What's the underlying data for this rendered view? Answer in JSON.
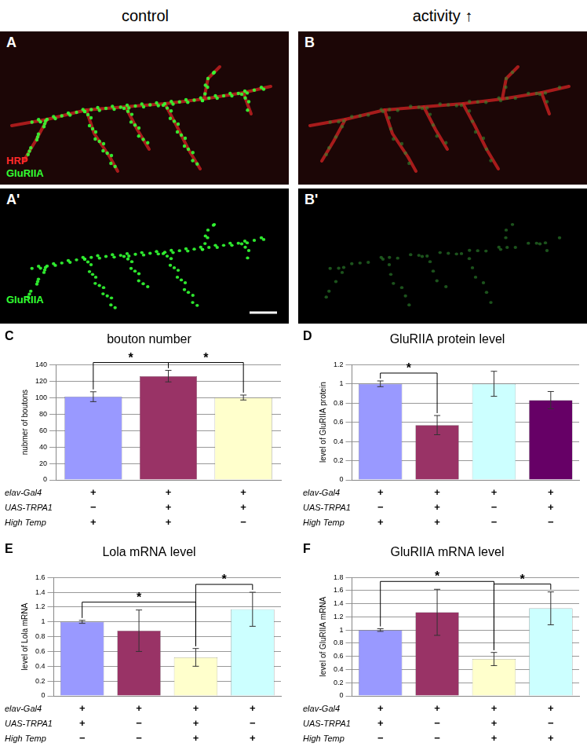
{
  "header": {
    "left": "control",
    "right": "activity ↑"
  },
  "panels": [
    {
      "letter": "A",
      "labels": [
        {
          "text": "HRP",
          "color": "#ff2a2a"
        },
        {
          "text": "GluRIIA",
          "color": "#33ff33"
        }
      ]
    },
    {
      "letter": "B",
      "labels": []
    },
    {
      "letter": "A'",
      "labels": [
        {
          "text": "GluRIIA",
          "color": "#33ff33"
        }
      ]
    },
    {
      "letter": "B'",
      "labels": []
    }
  ],
  "chart_data": [
    {
      "panel": "C",
      "type": "bar",
      "title": "bouton number",
      "y_label": "nubmer of boutons",
      "categories": [
        null,
        null,
        null
      ],
      "values": [
        101,
        126,
        100
      ],
      "errors": [
        6,
        7,
        3
      ],
      "colors": [
        "#9999ff",
        "#993366",
        "#ffffcc"
      ],
      "ylim": [
        0,
        140
      ],
      "yticks": [
        0,
        20,
        40,
        60,
        80,
        100,
        120,
        140
      ],
      "grid": true,
      "tick_labels": "y",
      "significance": [
        {
          "from": 0,
          "to": 1,
          "label": "*"
        },
        {
          "from": 1,
          "to": 2,
          "label": "*"
        }
      ],
      "genotype": [
        {
          "name": "elav-Gal4",
          "values": [
            "+",
            "+",
            "+"
          ]
        },
        {
          "name": "UAS-TRPA1",
          "values": [
            "−",
            "+",
            "+"
          ]
        },
        {
          "name": "High Temp",
          "values": [
            "+",
            "+",
            "−"
          ]
        }
      ]
    },
    {
      "panel": "D",
      "type": "bar",
      "title": "GluRIIA protein level",
      "y_label": "level of GluRIIA protein",
      "categories": [
        null,
        null,
        null,
        null
      ],
      "values": [
        1.0,
        0.57,
        1.0,
        0.83
      ],
      "errors": [
        0.03,
        0.1,
        0.13,
        0.09
      ],
      "colors": [
        "#9999ff",
        "#993366",
        "#ccffff",
        "#660066"
      ],
      "ylim": [
        0,
        1.2
      ],
      "yticks": [
        0,
        0.2,
        0.4,
        0.6,
        0.8,
        1,
        1.2
      ],
      "grid": true,
      "tick_labels": "y",
      "significance": [
        {
          "from": 0,
          "to": 1,
          "label": "*"
        }
      ],
      "genotype": [
        {
          "name": "elav-Gal4",
          "values": [
            "+",
            "+",
            "+",
            "+"
          ]
        },
        {
          "name": "UAS-TRPA1",
          "values": [
            "−",
            "+",
            "−",
            "+"
          ]
        },
        {
          "name": "High Temp",
          "values": [
            "+",
            "+",
            "−",
            "−"
          ]
        }
      ]
    },
    {
      "panel": "E",
      "type": "bar",
      "title": "Lola mRNA level",
      "y_label": "level of Lola mRNA",
      "categories": [
        null,
        null,
        null,
        null
      ],
      "values": [
        1.0,
        0.88,
        0.52,
        1.17
      ],
      "errors": [
        0.02,
        0.28,
        0.12,
        0.23
      ],
      "colors": [
        "#9999ff",
        "#993366",
        "#ffffcc",
        "#ccffff"
      ],
      "ylim": [
        0,
        1.6
      ],
      "yticks": [
        0,
        0.2,
        0.4,
        0.6,
        0.8,
        1,
        1.2,
        1.4,
        1.6
      ],
      "grid": true,
      "tick_labels": "y",
      "significance": [
        {
          "from": 0,
          "to": 2,
          "label": "*"
        },
        {
          "from": 2,
          "to": 3,
          "label": "*"
        }
      ],
      "genotype": [
        {
          "name": "elav-Gal4",
          "values": [
            "+",
            "+",
            "+",
            "+"
          ]
        },
        {
          "name": "UAS-TRPA1",
          "values": [
            "+",
            "−",
            "+",
            "−"
          ]
        },
        {
          "name": "High Temp",
          "values": [
            "−",
            "−",
            "+",
            "+"
          ]
        }
      ]
    },
    {
      "panel": "F",
      "type": "bar",
      "title": "GluRIIA mRNA level",
      "y_label": "level of GluRIIA mRNA",
      "categories": [
        null,
        null,
        null,
        null
      ],
      "values": [
        1.0,
        1.27,
        0.56,
        1.33
      ],
      "errors": [
        0.02,
        0.35,
        0.1,
        0.25
      ],
      "colors": [
        "#9999ff",
        "#993366",
        "#ffffcc",
        "#ccffff"
      ],
      "ylim": [
        0,
        1.8
      ],
      "yticks": [
        0,
        0.2,
        0.4,
        0.6,
        0.8,
        1,
        1.2,
        1.4,
        1.6,
        1.8
      ],
      "grid": true,
      "tick_labels": "y",
      "significance": [
        {
          "from": 0,
          "to": 2,
          "label": "*"
        },
        {
          "from": 2,
          "to": 3,
          "label": "*"
        }
      ],
      "genotype": [
        {
          "name": "elav-Gal4",
          "values": [
            "+",
            "+",
            "+",
            "+"
          ]
        },
        {
          "name": "UAS-TRPA1",
          "values": [
            "+",
            "−",
            "+",
            "−"
          ]
        },
        {
          "name": "High Temp",
          "values": [
            "−",
            "−",
            "+",
            "+"
          ]
        }
      ]
    }
  ]
}
